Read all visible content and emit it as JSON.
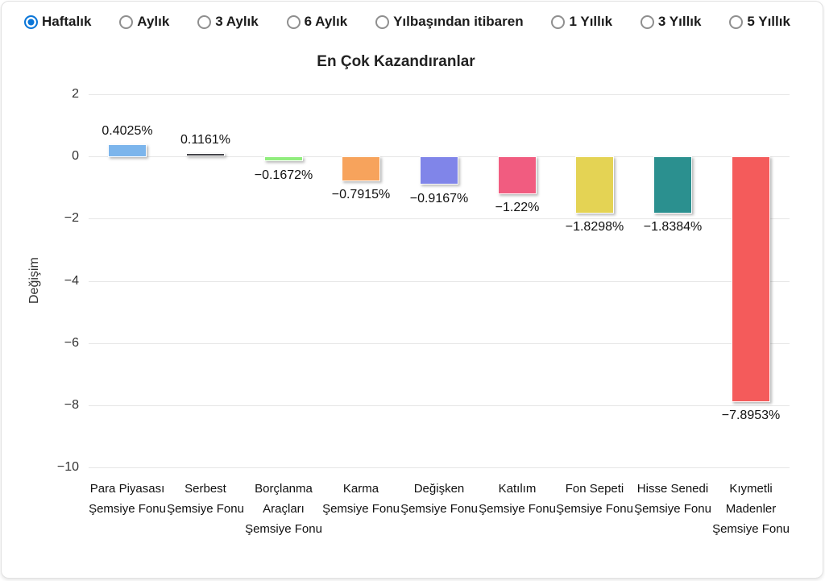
{
  "toolbar": {
    "options": [
      {
        "label": "Haftalık",
        "selected": true
      },
      {
        "label": "Aylık",
        "selected": false
      },
      {
        "label": "3 Aylık",
        "selected": false
      },
      {
        "label": "6 Aylık",
        "selected": false
      },
      {
        "label": "Yılbaşından itibaren",
        "selected": false
      },
      {
        "label": "1 Yıllık",
        "selected": false
      },
      {
        "label": "3 Yıllık",
        "selected": false
      },
      {
        "label": "5 Yıllık",
        "selected": false
      }
    ]
  },
  "chart_data": {
    "type": "bar",
    "title": "En Çok Kazandıranlar",
    "xlabel": "",
    "ylabel": "Değişim",
    "ylim": [
      -10,
      2
    ],
    "yticks": [
      2,
      0,
      -2,
      -4,
      -6,
      -8,
      -10
    ],
    "grid": true,
    "legend": "none",
    "categories": [
      "Para Piyasası Şemsiye Fonu",
      "Serbest Şemsiye Fonu",
      "Borçlanma Araçları Şemsiye Fonu",
      "Karma Şemsiye Fonu",
      "Değişken Şemsiye Fonu",
      "Katılım Şemsiye Fonu",
      "Fon Sepeti Şemsiye Fonu",
      "Hisse Senedi Şemsiye Fonu",
      "Kıymetli Madenler Şemsiye Fonu"
    ],
    "values": [
      0.4025,
      0.1161,
      -0.1672,
      -0.7915,
      -0.9167,
      -1.22,
      -1.8298,
      -1.8384,
      -7.8953
    ],
    "value_labels": [
      "0.4025%",
      "0.1161%",
      "−0.1672%",
      "−0.7915%",
      "−0.9167%",
      "−1.22%",
      "−1.8298%",
      "−1.8384%",
      "−7.8953%"
    ],
    "bar_colors": [
      "#7cb5ec",
      "#434348",
      "#90ed7d",
      "#f7a35c",
      "#8085e9",
      "#f15c80",
      "#e4d354",
      "#2b908f",
      "#f45b5b"
    ]
  },
  "colors": {
    "radio_selected": "#0b76d8",
    "radio_unselected": "#8f8f8f",
    "gridline": "#e6e6e6"
  }
}
